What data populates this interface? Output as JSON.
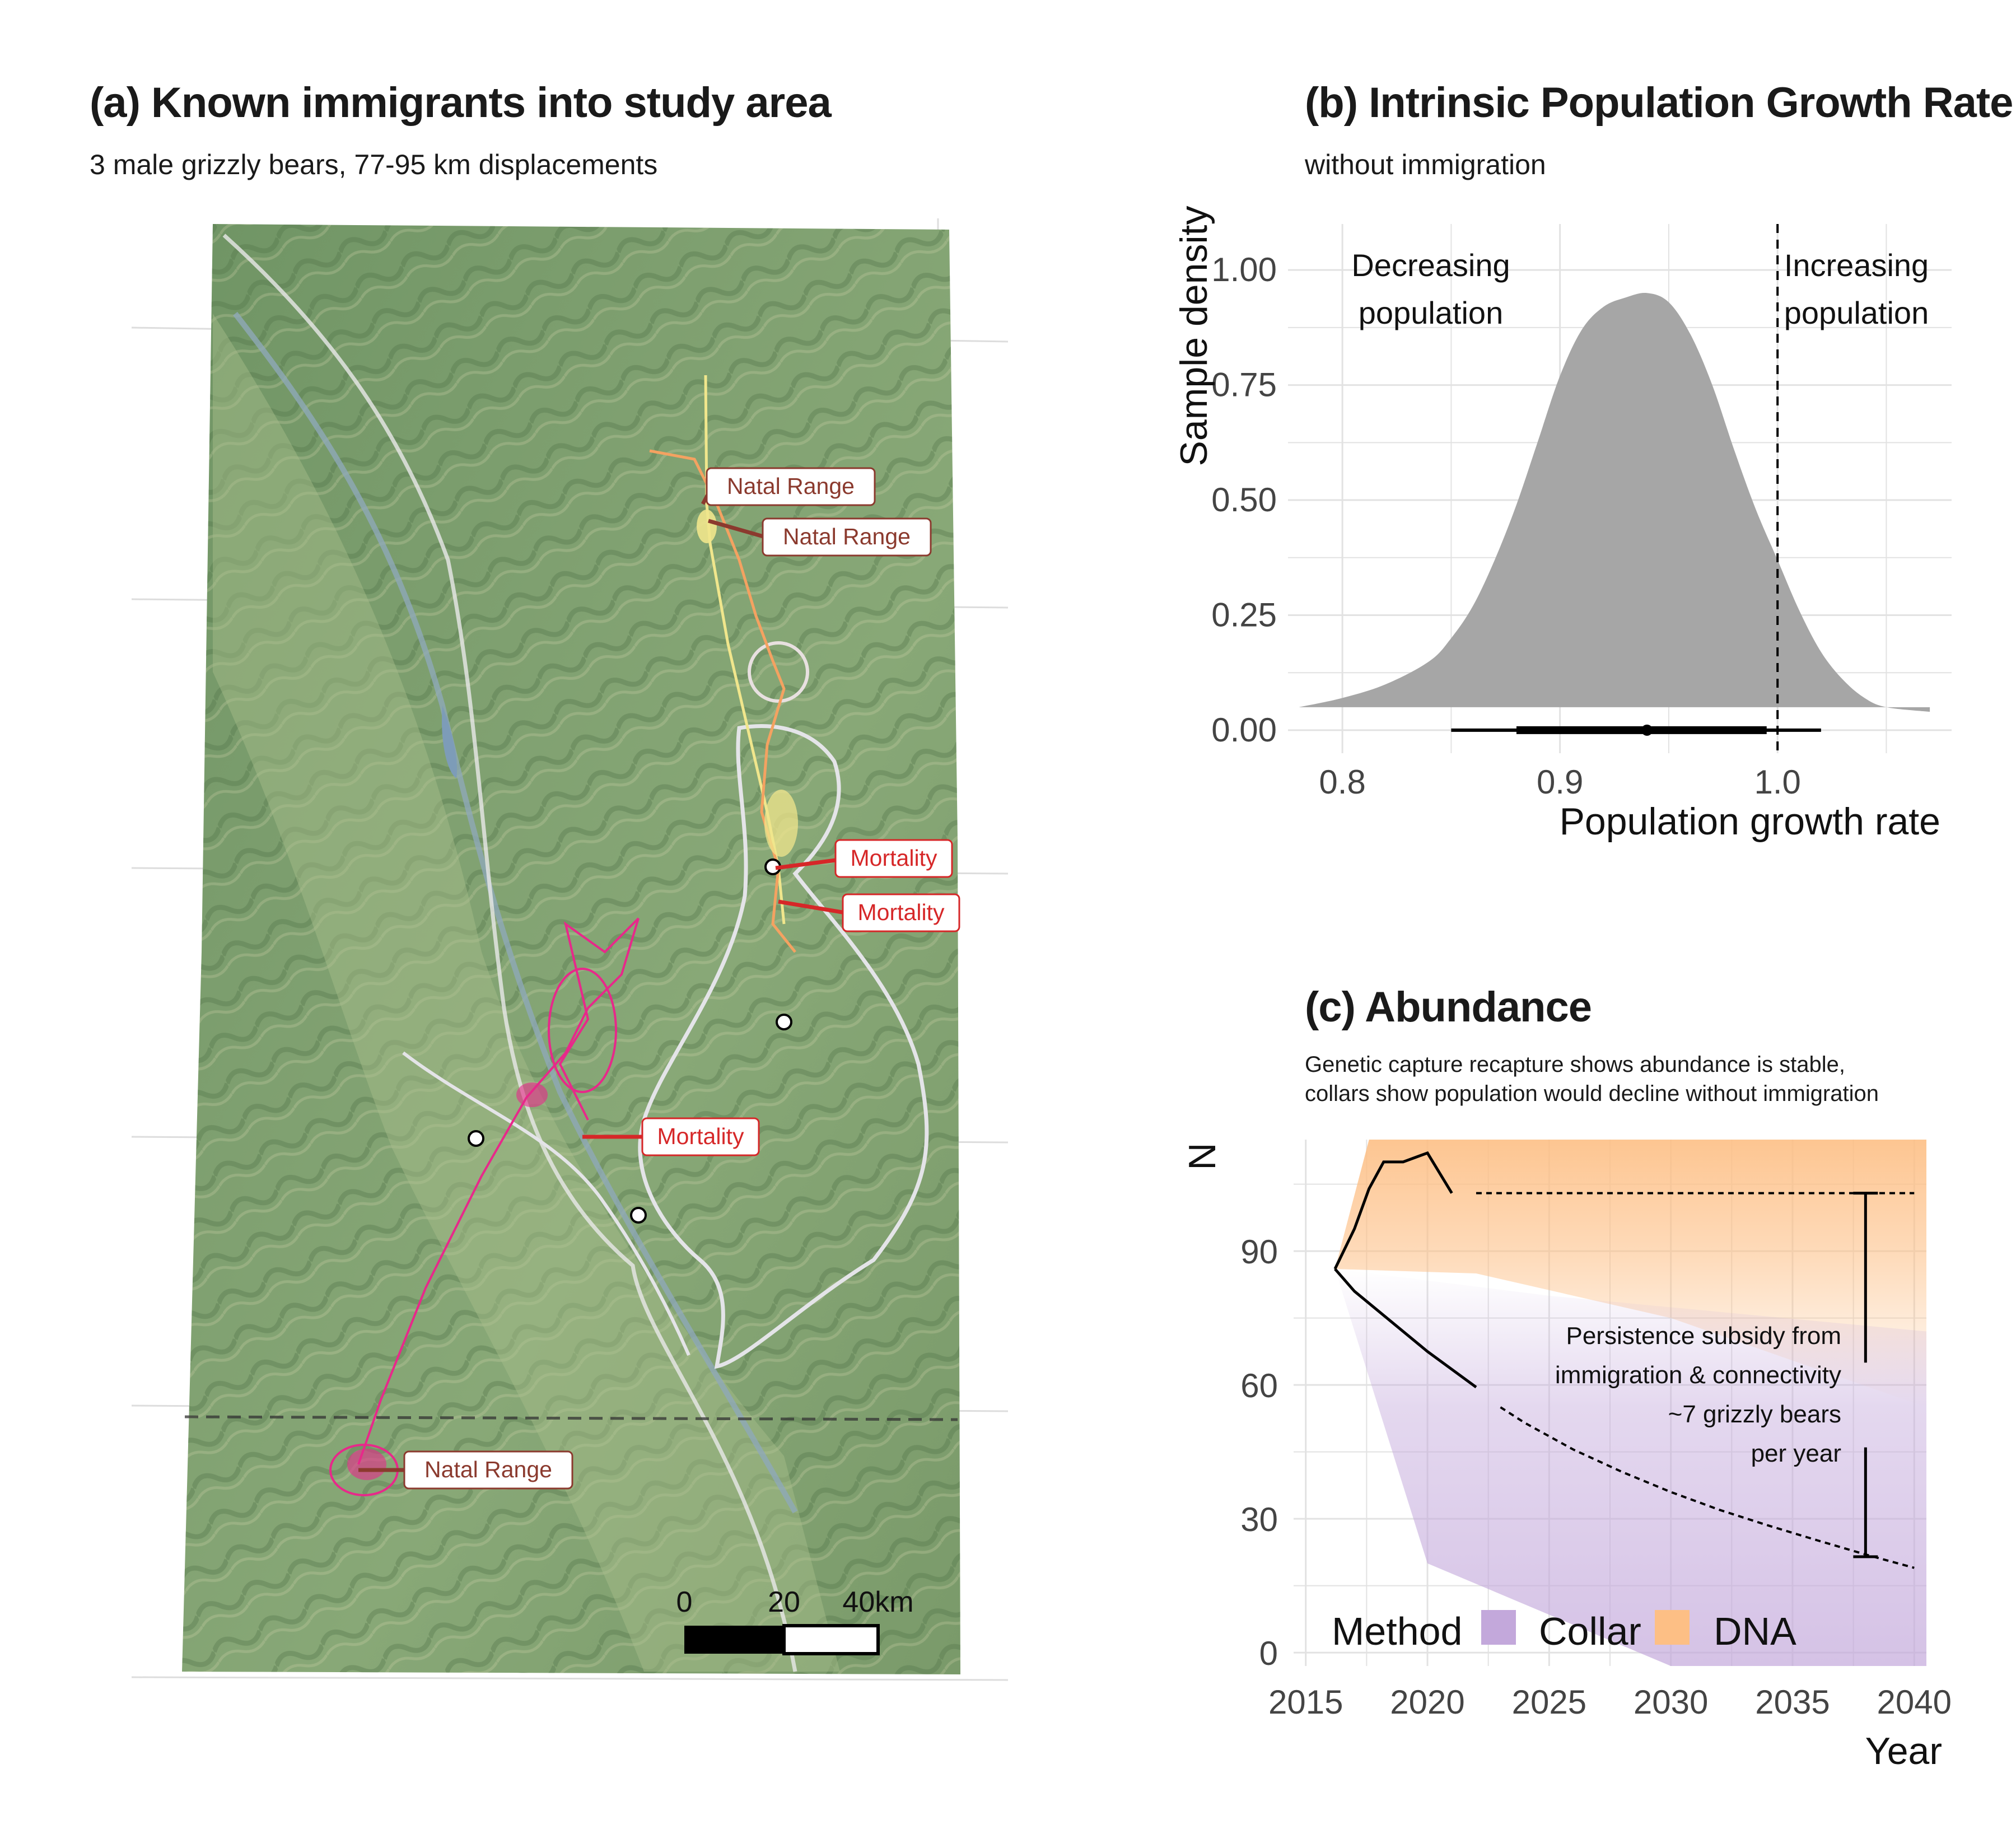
{
  "panel_a": {
    "title": "(a) Known immigrants into study area",
    "subtitle": "3 male grizzly bears, 77-95 km displacements",
    "labels": {
      "natal_1": "Natal Range",
      "natal_2": "Natal Range",
      "natal_3": "Natal Range",
      "mort_1": "Mortality",
      "mort_2": "Mortality",
      "mort_3": "Mortality"
    },
    "scalebar": {
      "t0": "0",
      "t1": "20",
      "t2": "40km"
    },
    "colors": {
      "bear_1": "#e7298a",
      "bear_2": "#f4a261",
      "bear_3": "#f0e68c",
      "natal_label": "#8b3a2e",
      "mortality_label": "#d62728"
    }
  },
  "chart_data": [
    {
      "type": "area",
      "title": "(b) Intrinsic Population Growth Rate",
      "subtitle": "without immigration",
      "xlabel": "Population growth rate",
      "ylabel": "Sample density",
      "xlim": [
        0.775,
        1.08
      ],
      "ylim": [
        -0.05,
        1.1
      ],
      "xticks": [
        "0.8",
        "0.9",
        "1.0"
      ],
      "yticks": [
        "0.00",
        "0.25",
        "0.50",
        "0.75",
        "1.00"
      ],
      "annotations": [
        "Decreasing",
        "population",
        "Increasing",
        "population"
      ],
      "reference_line": 1.0,
      "density_x": [
        0.78,
        0.8,
        0.82,
        0.84,
        0.85,
        0.86,
        0.87,
        0.88,
        0.89,
        0.9,
        0.91,
        0.92,
        0.93,
        0.94,
        0.95,
        0.96,
        0.97,
        0.98,
        0.99,
        1.0,
        1.01,
        1.02,
        1.03,
        1.04,
        1.05,
        1.07
      ],
      "density_y": [
        0.05,
        0.07,
        0.1,
        0.15,
        0.2,
        0.27,
        0.37,
        0.49,
        0.63,
        0.77,
        0.87,
        0.92,
        0.94,
        0.95,
        0.93,
        0.86,
        0.75,
        0.61,
        0.48,
        0.37,
        0.26,
        0.17,
        0.11,
        0.07,
        0.05,
        0.04
      ],
      "interval": {
        "median": 0.94,
        "inner": [
          0.88,
          0.995
        ],
        "outer": [
          0.85,
          1.02
        ]
      },
      "color": "#a6a6a6",
      "grid": true
    },
    {
      "type": "line",
      "title": "(c) Abundance",
      "subtitle_line1": "Genetic capture recapture shows abundance is stable,",
      "subtitle_line2": "collars show population would decline without immigration",
      "xlabel": "Year",
      "ylabel": "N",
      "xlim": [
        2014.5,
        2040.5
      ],
      "ylim": [
        -3,
        115
      ],
      "xticks": [
        "2015",
        "2020",
        "2025",
        "2030",
        "2035",
        "2040"
      ],
      "yticks": [
        "0",
        "30",
        "60",
        "90"
      ],
      "series": [
        {
          "name": "DNA",
          "color": "#fdbf85",
          "x": [
            2016.2,
            2017.0,
            2017.6,
            2018.2,
            2019.0,
            2020.0,
            2021.0
          ],
          "y": [
            86,
            95,
            104,
            110,
            110,
            112,
            103
          ],
          "projection": 103
        },
        {
          "name": "Collar",
          "color": "#c3a8db",
          "x": [
            2016.2,
            2017,
            2018,
            2019,
            2020,
            2021,
            2022
          ],
          "y": [
            86,
            81,
            76.5,
            72,
            67.5,
            63.5,
            59.5
          ],
          "projection_x": [
            2023,
            2024,
            2026,
            2028,
            2030,
            2032,
            2034,
            2036,
            2038,
            2040
          ],
          "projection_y": [
            55,
            51.5,
            45.5,
            40.5,
            36,
            32,
            28.5,
            25.2,
            22,
            19
          ]
        }
      ],
      "annotation_lines": [
        "Persistence subsidy from",
        "immigration & connectivity",
        "~7 grizzly bears",
        "per year"
      ],
      "legend_title": "Method",
      "legend": [
        "Collar",
        "DNA"
      ],
      "legend_position": "bottom-left",
      "grid": true
    }
  ]
}
